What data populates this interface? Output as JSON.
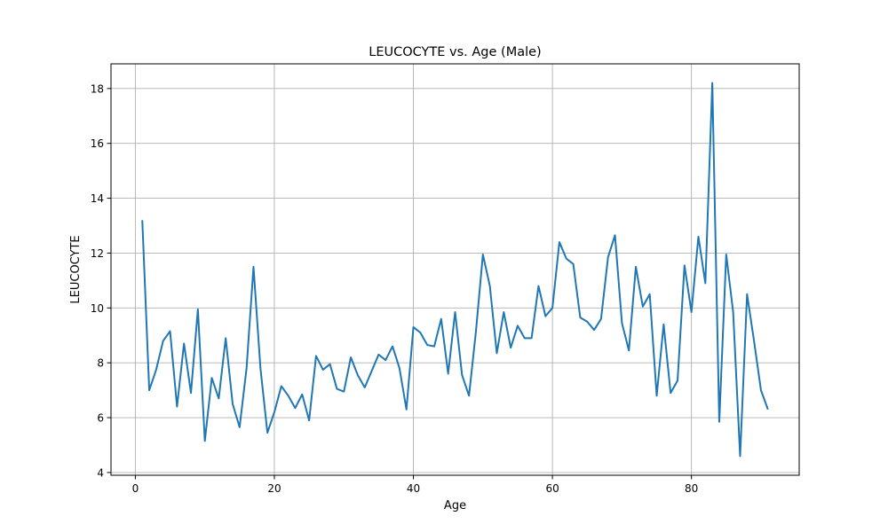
{
  "chart_data": {
    "type": "line",
    "title": "LEUCOCYTE vs. Age (Male)",
    "xlabel": "Age",
    "ylabel": "LEUCOCYTE",
    "xlim": [
      -3.5,
      95.5
    ],
    "ylim": [
      3.9,
      18.9
    ],
    "xticks": [
      0,
      20,
      40,
      60,
      80
    ],
    "yticks": [
      4,
      6,
      8,
      10,
      12,
      14,
      16,
      18
    ],
    "grid": true,
    "series": [
      {
        "color": "#1f77b4",
        "x": [
          1,
          2,
          3,
          4,
          5,
          6,
          7,
          8,
          9,
          10,
          11,
          12,
          13,
          14,
          15,
          16,
          17,
          18,
          19,
          20,
          21,
          22,
          23,
          24,
          25,
          26,
          27,
          28,
          29,
          30,
          31,
          32,
          33,
          34,
          35,
          36,
          37,
          38,
          39,
          40,
          41,
          42,
          43,
          44,
          45,
          46,
          47,
          48,
          49,
          50,
          51,
          52,
          53,
          54,
          55,
          56,
          57,
          58,
          59,
          60,
          61,
          62,
          63,
          64,
          65,
          66,
          67,
          68,
          69,
          70,
          71,
          72,
          73,
          74,
          75,
          76,
          77,
          78,
          79,
          80,
          81,
          82,
          83,
          84,
          85,
          86,
          87,
          88,
          89,
          90,
          91
        ],
        "values": [
          13.2,
          7.0,
          7.75,
          8.8,
          9.15,
          6.4,
          8.7,
          6.9,
          9.95,
          5.15,
          7.45,
          6.7,
          8.9,
          6.5,
          5.65,
          7.8,
          11.5,
          7.8,
          5.45,
          6.2,
          7.15,
          6.8,
          6.35,
          6.85,
          5.9,
          8.25,
          7.75,
          7.95,
          7.05,
          6.95,
          8.2,
          7.55,
          7.1,
          7.7,
          8.3,
          8.1,
          8.6,
          7.8,
          6.3,
          9.3,
          9.1,
          8.65,
          8.6,
          9.6,
          7.6,
          9.85,
          7.55,
          6.8,
          9.15,
          11.95,
          10.8,
          8.35,
          9.85,
          8.55,
          9.35,
          8.9,
          8.9,
          10.8,
          9.7,
          10.0,
          12.4,
          11.8,
          11.6,
          9.65,
          9.5,
          9.2,
          9.6,
          11.85,
          12.65,
          9.45,
          8.45,
          11.5,
          10.05,
          10.5,
          6.8,
          9.4,
          6.9,
          7.35,
          11.55,
          9.85,
          12.6,
          10.9,
          18.2,
          5.85,
          11.95,
          9.85,
          4.6,
          10.5,
          8.8,
          7.0,
          6.3
        ]
      }
    ]
  }
}
